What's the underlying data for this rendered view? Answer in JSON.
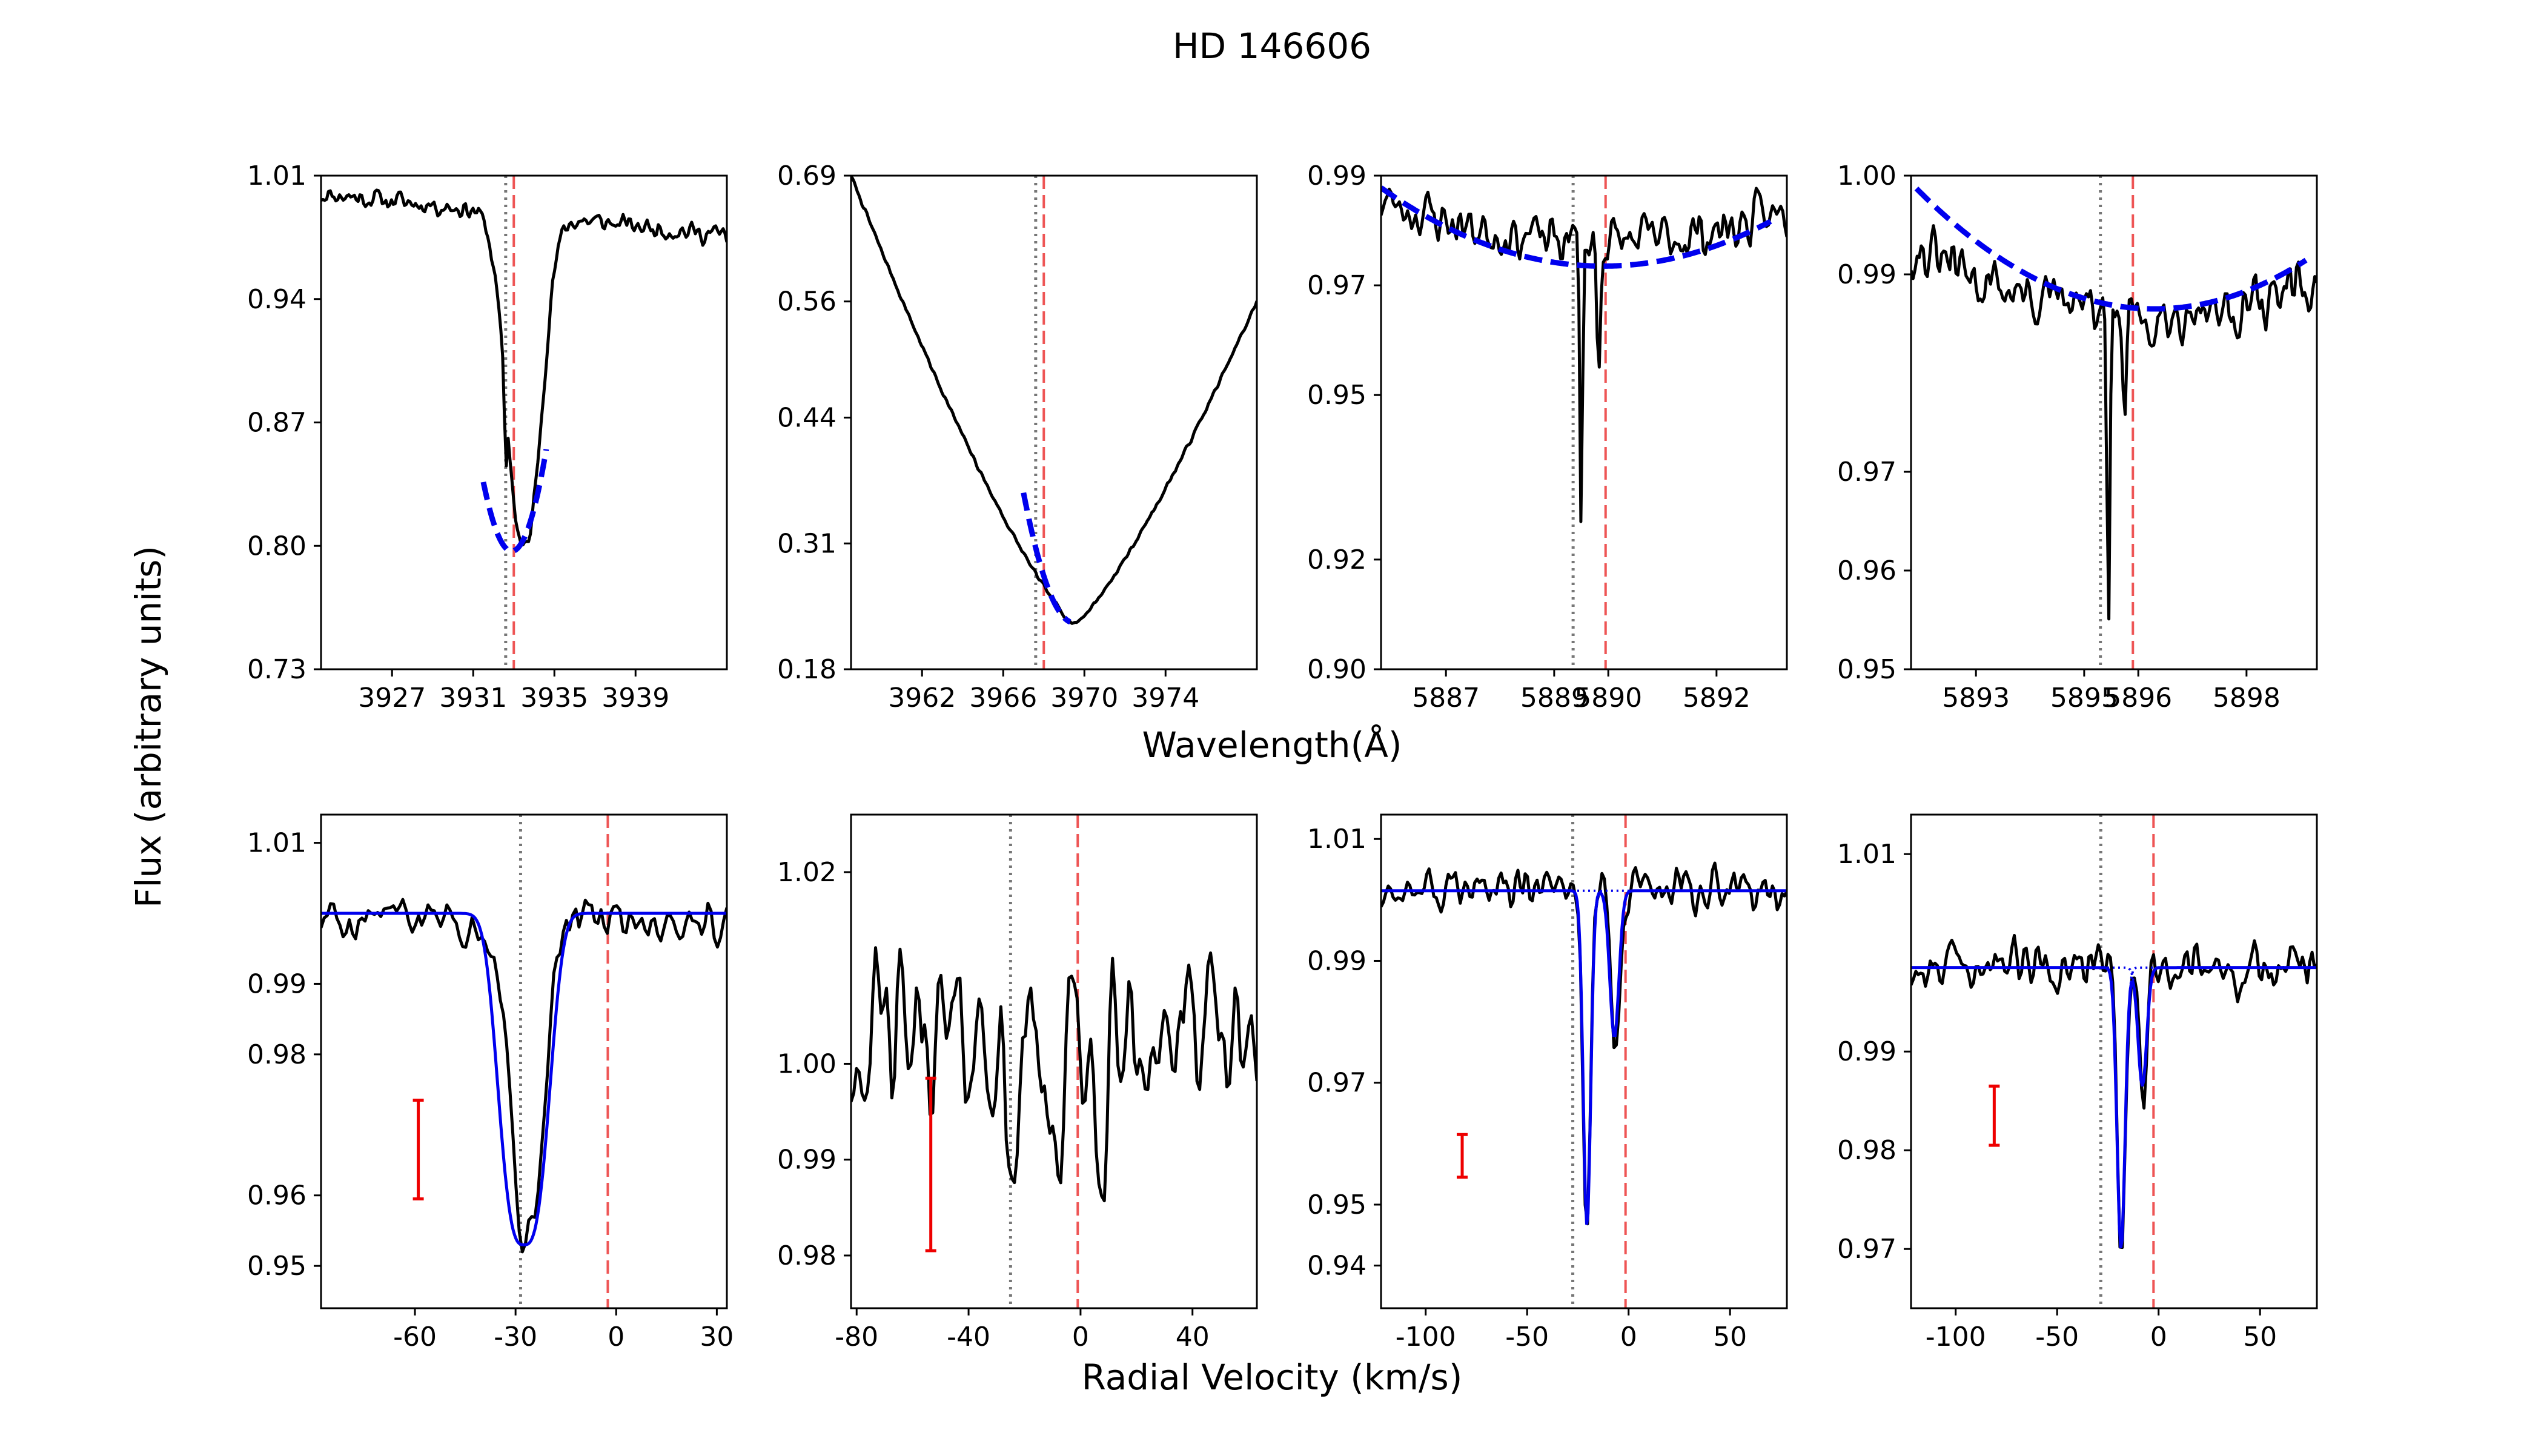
{
  "figure": {
    "title": "HD 146606",
    "ylabel": "Flux (arbitrary units)",
    "xlabel_top": "Wavelength(Å)",
    "xlabel_bottom": "Radial Velocity (km/s)"
  },
  "colors": {
    "spectrum": "#000000",
    "fit": "#0000ee",
    "rest_line": "#ee5555",
    "ism_line": "#777777",
    "error_bar": "#ee0000"
  },
  "chart_data": [
    {
      "type": "line",
      "row": 0,
      "col": 0,
      "xlim": [
        3923.5,
        3943.5
      ],
      "ylim": [
        0.73,
        1.01
      ],
      "xticks": [
        3927,
        3931,
        3935,
        3939
      ],
      "yticks": [
        0.73,
        0.8,
        0.87,
        0.94,
        1.01
      ],
      "xtick_labels": [
        "3927",
        "3931",
        "3935",
        "3939"
      ],
      "ytick_labels": [
        "0.73",
        "0.80",
        "0.87",
        "0.94",
        "1.01"
      ],
      "vlines": [
        {
          "x": 3932.6,
          "style": "dotted",
          "color": "ism_line"
        },
        {
          "x": 3933.0,
          "style": "dashed",
          "color": "rest_line"
        }
      ],
      "spectrum": {
        "kind": "line",
        "params": {
          "cont": 0.988,
          "slope": -0.0012,
          "x0": 3933.5,
          "depth": 0.19,
          "width": 1.15,
          "power": 2.2,
          "narrow": [
            {
              "x": 3932.6,
              "d": 0.04,
              "w": 0.07
            }
          ],
          "noise": 0.005,
          "n": 220,
          "seed": 11
        }
      },
      "fit": {
        "x_range": [
          3931.5,
          3934.6
        ],
        "style": "dashed",
        "params": {
          "center": 3932.9,
          "min": 0.797,
          "curv": 0.02
        }
      }
    },
    {
      "type": "line",
      "row": 0,
      "col": 1,
      "xlim": [
        3958.5,
        3978.5
      ],
      "ylim": [
        0.18,
        0.69
      ],
      "xticks": [
        3962,
        3966,
        3970,
        3974
      ],
      "yticks": [
        0.18,
        0.31,
        0.44,
        0.56,
        0.69
      ],
      "xtick_labels": [
        "3962",
        "3966",
        "3970",
        "3974"
      ],
      "ytick_labels": [
        "0.18",
        "0.31",
        "0.44",
        "0.56",
        "0.69"
      ],
      "vlines": [
        {
          "x": 3967.6,
          "style": "dotted",
          "color": "ism_line"
        },
        {
          "x": 3968.0,
          "style": "dashed",
          "color": "rest_line"
        }
      ],
      "spectrum": {
        "kind": "balmer",
        "params": {
          "x0": 3969.5,
          "left": 0.69,
          "right": 0.56,
          "xl": 3958.5,
          "xr": 3978.5,
          "bottom": 0.227,
          "noise": 0.002,
          "n": 260,
          "seed": 7
        }
      },
      "fit": {
        "x_range": [
          3967.0,
          3969.3
        ],
        "style": "dashed",
        "params": {
          "center": 3969.5,
          "min": 0.228,
          "curv": 0.0215
        }
      }
    },
    {
      "type": "line",
      "row": 0,
      "col": 2,
      "xlim": [
        5885.8,
        5893.3
      ],
      "ylim": [
        0.9,
        0.99
      ],
      "xticks": [
        5887,
        5889,
        5890,
        5892
      ],
      "yticks": [
        0.9,
        0.92,
        0.95,
        0.97,
        0.99
      ],
      "xtick_labels": [
        "5887",
        "5889",
        "5890",
        "5892"
      ],
      "ytick_labels": [
        "0.90",
        "0.92",
        "0.95",
        "0.97",
        "0.99"
      ],
      "vlines": [
        {
          "x": 5889.35,
          "style": "dotted",
          "color": "ism_line"
        },
        {
          "x": 5889.95,
          "style": "dashed",
          "color": "rest_line"
        }
      ],
      "spectrum": {
        "kind": "line",
        "params": {
          "cont": 0.978,
          "slope": 0.0,
          "x0": 5889.9,
          "depth": 0.0,
          "width": 1.0,
          "power": 2,
          "curv": 0.0013,
          "narrow": [
            {
              "x": 5889.5,
              "d": 0.052,
              "w": 0.035
            },
            {
              "x": 5889.82,
              "d": 0.024,
              "w": 0.045
            }
          ],
          "noise": 0.004,
          "n": 200,
          "seed": 23
        }
      },
      "fit": {
        "x_range": [
          5885.8,
          5893.0
        ],
        "style": "dashed",
        "params": {
          "center": 5889.9,
          "min": 0.9735,
          "curv": 0.00085
        }
      }
    },
    {
      "type": "line",
      "row": 0,
      "col": 3,
      "xlim": [
        5891.8,
        5899.3
      ],
      "ylim": [
        0.95,
        1.0
      ],
      "xticks": [
        5893,
        5895,
        5896,
        5898
      ],
      "yticks": [
        0.95,
        0.96,
        0.97,
        0.99,
        1.0
      ],
      "xtick_labels": [
        "5893",
        "5895",
        "5896",
        "5898"
      ],
      "ytick_labels": [
        "0.95",
        "0.96",
        "0.97",
        "0.99",
        "1.00"
      ],
      "vlines": [
        {
          "x": 5895.3,
          "style": "dotted",
          "color": "ism_line"
        },
        {
          "x": 5895.9,
          "style": "dashed",
          "color": "rest_line"
        }
      ],
      "spectrum": {
        "kind": "line",
        "params": {
          "cont": 0.986,
          "slope": 0.0,
          "x0": 5896.3,
          "depth": 0.0,
          "width": 1.0,
          "power": 2,
          "curv": 0.00095,
          "narrow": [
            {
              "x": 5895.45,
              "d": 0.032,
              "w": 0.04
            },
            {
              "x": 5895.75,
              "d": 0.012,
              "w": 0.05
            }
          ],
          "noise": 0.0025,
          "n": 200,
          "seed": 31
        }
      },
      "fit": {
        "x_range": [
          5891.9,
          5899.1
        ],
        "style": "dashed",
        "params": {
          "center": 5896.3,
          "min": 0.9865,
          "curv": 0.00063
        }
      }
    },
    {
      "type": "line",
      "row": 1,
      "col": 0,
      "xlim": [
        -88,
        33
      ],
      "ylim": [
        0.944,
        1.014
      ],
      "xticks": [
        -60,
        -30,
        0,
        30
      ],
      "yticks": [
        0.95,
        0.96,
        0.98,
        0.99,
        1.01
      ],
      "xtick_labels": [
        "-60",
        "-30",
        "0",
        "30"
      ],
      "ytick_labels": [
        "0.95",
        "0.96",
        "0.98",
        "0.99",
        "1.01"
      ],
      "vlines": [
        {
          "x": -28.5,
          "style": "dotted",
          "color": "ism_line"
        },
        {
          "x": -2.5,
          "style": "dashed",
          "color": "rest_line"
        }
      ],
      "error_bar": {
        "x": -59,
        "y_low": 0.9595,
        "y_high": 0.9735
      },
      "spectrum": {
        "kind": "comps",
        "params": {
          "cont": 0.9995,
          "comps": [
            {
              "x": -26.5,
              "d": 0.047,
              "w": 6.5
            }
          ],
          "noise": 0.0035,
          "n": 130,
          "seed": 5
        }
      },
      "fit": {
        "style": "solid",
        "params": {
          "cont": 1.0,
          "comps": [
            {
              "x": -27.5,
              "d": 0.047,
              "w": 9.0,
              "p": 3
            }
          ]
        }
      }
    },
    {
      "type": "line",
      "row": 1,
      "col": 1,
      "xlim": [
        -82,
        63
      ],
      "ylim": [
        0.9745,
        1.026
      ],
      "xticks": [
        -80,
        -40,
        0,
        40
      ],
      "yticks": [
        0.98,
        0.99,
        1.0,
        1.02
      ],
      "xtick_labels": [
        "-80",
        "-40",
        "0",
        "40"
      ],
      "ytick_labels": [
        "0.98",
        "0.99",
        "1.00",
        "1.02"
      ],
      "vlines": [
        {
          "x": -25,
          "style": "dotted",
          "color": "ism_line"
        },
        {
          "x": -1,
          "style": "dashed",
          "color": "rest_line"
        }
      ],
      "error_bar": {
        "x": -53.5,
        "y_low": 0.9805,
        "y_high": 0.9985
      },
      "spectrum": {
        "kind": "comps",
        "params": {
          "cont": 1.0025,
          "comps": [
            {
              "x": -25,
              "d": 0.017,
              "w": 2.5
            },
            {
              "x": -8.5,
              "d": 0.014,
              "w": 2.5
            },
            {
              "x": 6.5,
              "d": 0.017,
              "w": 2.5
            }
          ],
          "noise": 0.007,
          "n": 150,
          "seed": 42
        }
      },
      "fit": null
    },
    {
      "type": "line",
      "row": 1,
      "col": 2,
      "xlim": [
        -122,
        78
      ],
      "ylim": [
        0.933,
        1.014
      ],
      "xticks": [
        -100,
        -50,
        0,
        50
      ],
      "yticks": [
        0.94,
        0.95,
        0.97,
        0.99,
        1.01
      ],
      "xtick_labels": [
        "-100",
        "-50",
        "0",
        "50"
      ],
      "ytick_labels": [
        "0.94",
        "0.95",
        "0.97",
        "0.99",
        "1.01"
      ],
      "vlines": [
        {
          "x": -27.5,
          "style": "dotted",
          "color": "ism_line"
        },
        {
          "x": -1.5,
          "style": "dashed",
          "color": "rest_line"
        }
      ],
      "error_bar": {
        "x": -82,
        "y_low": 0.9545,
        "y_high": 0.9615
      },
      "spectrum": {
        "kind": "comps",
        "params": {
          "cont": 1.0015,
          "comps": [
            {
              "x": -20.5,
              "d": 0.055,
              "w": 2.6
            },
            {
              "x": -6.5,
              "d": 0.027,
              "w": 3.2
            }
          ],
          "noise": 0.0035,
          "n": 170,
          "seed": 77
        }
      },
      "fit": {
        "style": "solid",
        "params": {
          "cont": 1.0015,
          "comps": [
            {
              "x": -20.5,
              "d": 0.055,
              "w": 2.6,
              "p": 2
            },
            {
              "x": -7.0,
              "d": 0.024,
              "w": 3.2,
              "p": 2
            }
          ]
        },
        "components_dotted": true
      }
    },
    {
      "type": "line",
      "row": 1,
      "col": 3,
      "xlim": [
        -122,
        78
      ],
      "ylim": [
        0.964,
        1.014
      ],
      "xticks": [
        -100,
        -50,
        0,
        50
      ],
      "yticks": [
        0.97,
        0.98,
        0.99,
        1.01
      ],
      "xtick_labels": [
        "-100",
        "-50",
        "0",
        "50"
      ],
      "ytick_labels": [
        "0.97",
        "0.98",
        "0.99",
        "1.01"
      ],
      "vlines": [
        {
          "x": -28.5,
          "style": "dotted",
          "color": "ism_line"
        },
        {
          "x": -2.5,
          "style": "dashed",
          "color": "rest_line"
        }
      ],
      "error_bar": {
        "x": -81,
        "y_low": 0.9805,
        "y_high": 0.9865
      },
      "spectrum": {
        "kind": "comps",
        "params": {
          "cont": 0.9985,
          "comps": [
            {
              "x": -18.5,
              "d": 0.029,
              "w": 2.7
            },
            {
              "x": -7.5,
              "d": 0.013,
              "w": 2.8
            }
          ],
          "noise": 0.0024,
          "n": 170,
          "seed": 99
        }
      },
      "fit": {
        "style": "solid",
        "params": {
          "cont": 0.9985,
          "comps": [
            {
              "x": -18.5,
              "d": 0.0285,
              "w": 2.8,
              "p": 2
            },
            {
              "x": -8.0,
              "d": 0.012,
              "w": 3.0,
              "p": 2
            }
          ]
        },
        "components_dotted": true
      }
    }
  ]
}
